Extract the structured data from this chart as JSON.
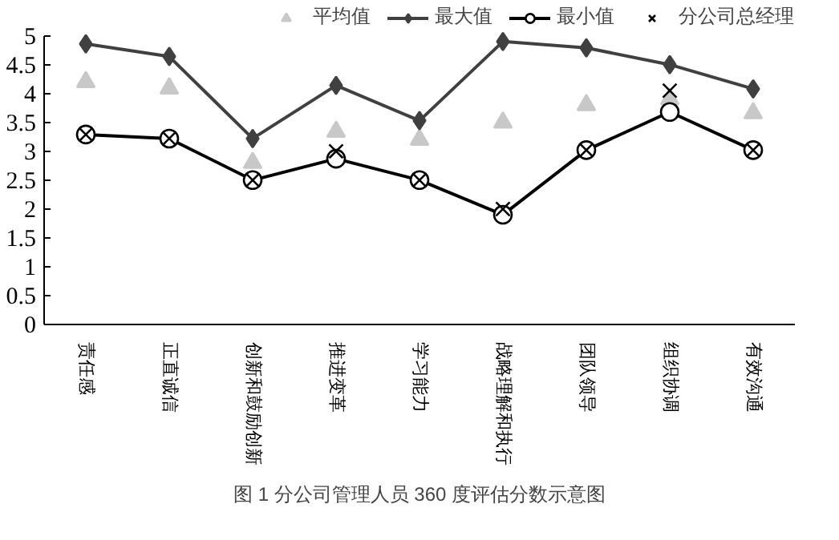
{
  "chart_data": {
    "type": "line",
    "categories": [
      "责任感",
      "正直诚信",
      "创新和鼓励创新",
      "推进变革",
      "学习能力",
      "战略理解和执行",
      "团队领导",
      "组织协调",
      "有效沟通"
    ],
    "series": [
      {
        "name": "平均值",
        "type": "scatter",
        "marker": "triangle",
        "color": "#c8c8c8",
        "values": [
          4.2,
          4.09,
          2.8,
          3.34,
          3.2,
          3.5,
          3.8,
          3.9,
          3.66
        ]
      },
      {
        "name": "最大值",
        "marker": "diamond",
        "color": "#404040",
        "values": [
          4.86,
          4.64,
          3.22,
          4.14,
          3.53,
          4.9,
          4.79,
          4.5,
          4.08
        ]
      },
      {
        "name": "最小值",
        "marker": "circle",
        "color": "#000000",
        "values": [
          3.29,
          3.22,
          2.5,
          2.87,
          2.5,
          1.9,
          3.02,
          3.68,
          3.02
        ]
      },
      {
        "name": "分公司总经理",
        "type": "scatter",
        "marker": "cross",
        "color": "#000000",
        "values": [
          3.29,
          3.22,
          2.5,
          3.0,
          2.5,
          2.0,
          3.02,
          4.05,
          3.02
        ]
      }
    ],
    "ylim": [
      0,
      5
    ],
    "yticks": [
      0,
      0.5,
      1,
      1.5,
      2,
      2.5,
      3,
      3.5,
      4,
      4.5,
      5
    ],
    "grid": false,
    "legend": "top right",
    "annotations": [
      "图 1 分公司管理人员 360 度评估分数示意图"
    ]
  }
}
